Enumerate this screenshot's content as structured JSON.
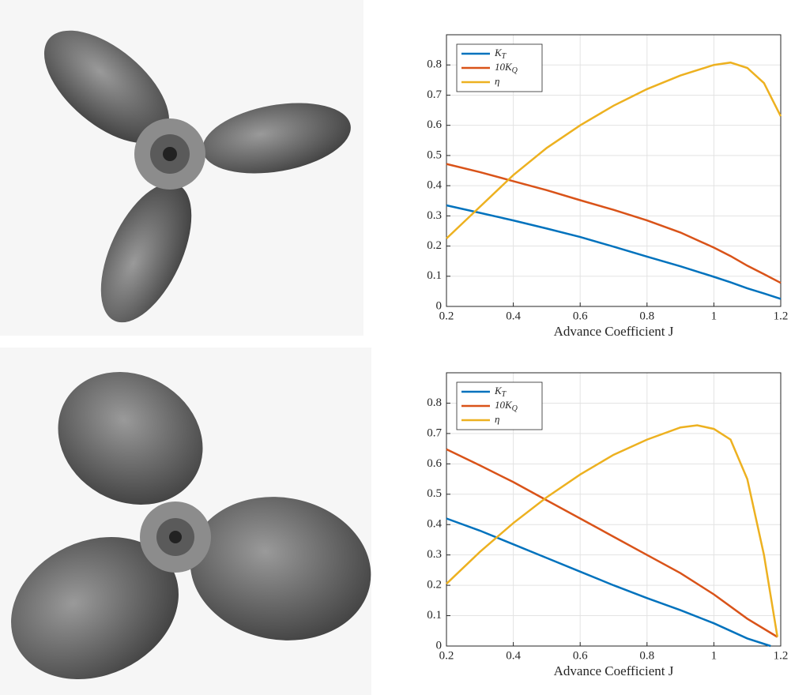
{
  "chart_data": [
    {
      "type": "line",
      "xlabel": "Advance Coefficient J",
      "xlim": [
        0.2,
        1.2
      ],
      "ylim": [
        0,
        0.9
      ],
      "xticks": [
        0.2,
        0.4,
        0.6,
        0.8,
        1,
        1.2
      ],
      "yticks": [
        0,
        0.1,
        0.2,
        0.3,
        0.4,
        0.5,
        0.6,
        0.7,
        0.8
      ],
      "grid": true,
      "legend": "upper-left",
      "series": [
        {
          "name": "K_T",
          "color": "#0072BD",
          "x": [
            0.2,
            0.3,
            0.4,
            0.5,
            0.6,
            0.7,
            0.8,
            0.9,
            1.0,
            1.05,
            1.1,
            1.15,
            1.2
          ],
          "values": [
            0.335,
            0.31,
            0.285,
            0.258,
            0.23,
            0.198,
            0.165,
            0.133,
            0.098,
            0.08,
            0.06,
            0.043,
            0.025
          ]
        },
        {
          "name": "10K_Q",
          "color": "#D95319",
          "x": [
            0.2,
            0.3,
            0.4,
            0.5,
            0.6,
            0.7,
            0.8,
            0.9,
            1.0,
            1.05,
            1.1,
            1.15,
            1.2
          ],
          "values": [
            0.472,
            0.445,
            0.415,
            0.385,
            0.352,
            0.32,
            0.285,
            0.245,
            0.195,
            0.167,
            0.135,
            0.107,
            0.078
          ]
        },
        {
          "name": "η",
          "color": "#EDB120",
          "x": [
            0.2,
            0.3,
            0.4,
            0.5,
            0.6,
            0.7,
            0.8,
            0.9,
            1.0,
            1.05,
            1.1,
            1.15,
            1.2
          ],
          "values": [
            0.225,
            0.33,
            0.435,
            0.525,
            0.6,
            0.665,
            0.72,
            0.765,
            0.8,
            0.808,
            0.79,
            0.74,
            0.63
          ]
        }
      ]
    },
    {
      "type": "line",
      "xlabel": "Advance Coefficient J",
      "xlim": [
        0.2,
        1.2
      ],
      "ylim": [
        0,
        0.9
      ],
      "xticks": [
        0.2,
        0.4,
        0.6,
        0.8,
        1,
        1.2
      ],
      "yticks": [
        0,
        0.1,
        0.2,
        0.3,
        0.4,
        0.5,
        0.6,
        0.7,
        0.8
      ],
      "grid": true,
      "legend": "upper-left",
      "series": [
        {
          "name": "K_T",
          "color": "#0072BD",
          "x": [
            0.2,
            0.3,
            0.4,
            0.5,
            0.6,
            0.7,
            0.8,
            0.9,
            1.0,
            1.1,
            1.17
          ],
          "values": [
            0.42,
            0.38,
            0.335,
            0.29,
            0.245,
            0.2,
            0.158,
            0.118,
            0.075,
            0.025,
            0
          ]
        },
        {
          "name": "10K_Q",
          "color": "#D95319",
          "x": [
            0.2,
            0.3,
            0.4,
            0.5,
            0.6,
            0.7,
            0.8,
            0.9,
            1.0,
            1.1,
            1.19
          ],
          "values": [
            0.648,
            0.595,
            0.54,
            0.48,
            0.42,
            0.36,
            0.3,
            0.24,
            0.17,
            0.09,
            0.03
          ]
        },
        {
          "name": "η",
          "color": "#EDB120",
          "x": [
            0.2,
            0.3,
            0.4,
            0.5,
            0.6,
            0.7,
            0.8,
            0.9,
            0.95,
            1.0,
            1.05,
            1.1,
            1.15,
            1.19
          ],
          "values": [
            0.205,
            0.31,
            0.405,
            0.49,
            0.565,
            0.63,
            0.68,
            0.72,
            0.727,
            0.715,
            0.68,
            0.55,
            0.3,
            0.03
          ]
        }
      ]
    }
  ]
}
